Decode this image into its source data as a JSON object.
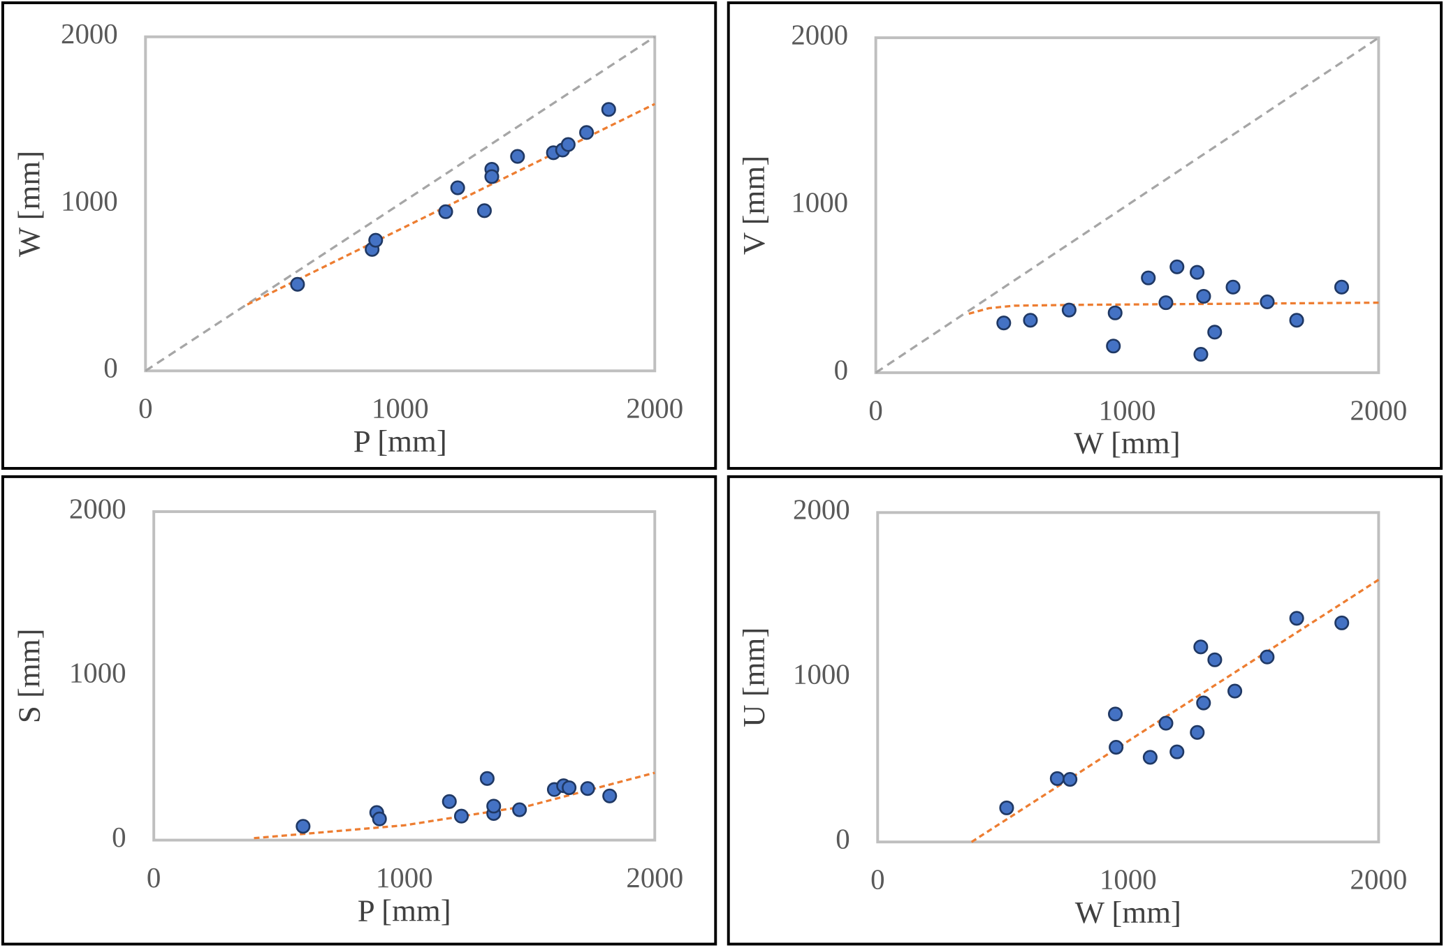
{
  "chart_data": [
    {
      "type": "scatter",
      "x_label": "P [mm]",
      "y_label": "W [mm]",
      "xlim": [
        0,
        2000
      ],
      "ylim": [
        0,
        2000
      ],
      "xticks": [
        0,
        1000,
        2000
      ],
      "yticks": [
        0,
        1000,
        2000
      ],
      "series": [
        {
          "mode": "dashed-line",
          "color": "#a6a6a6",
          "x": [
            0,
            2000
          ],
          "values": [
            0,
            2000
          ]
        },
        {
          "mode": "dashed-line",
          "color": "#ed7d31",
          "x": [
            400,
            2000
          ],
          "values": [
            397,
            1598
          ]
        },
        {
          "mode": "markers",
          "color": "#4472c4",
          "x": [
            597,
            890,
            904,
            1179,
            1226,
            1331,
            1360,
            1360,
            1461,
            1602,
            1638,
            1660,
            1732,
            1819
          ],
          "values": [
            518,
            727,
            782,
            953,
            1096,
            959,
            1207,
            1163,
            1284,
            1306,
            1322,
            1355,
            1427,
            1565
          ]
        }
      ]
    },
    {
      "type": "scatter",
      "x_label": "W [mm]",
      "y_label": "V [mm]",
      "xlim": [
        0,
        2000
      ],
      "ylim": [
        0,
        2000
      ],
      "xticks": [
        0,
        1000,
        2000
      ],
      "yticks": [
        0,
        1000,
        2000
      ],
      "series": [
        {
          "mode": "dashed-line",
          "color": "#a6a6a6",
          "x": [
            0,
            2000
          ],
          "values": [
            0,
            2000
          ]
        },
        {
          "mode": "dashed-line",
          "color": "#ed7d31",
          "x": [
            370,
            450,
            550,
            800,
            2000
          ],
          "values": [
            352,
            385,
            400,
            405,
            418
          ]
        },
        {
          "mode": "markers",
          "color": "#4472c4",
          "x": [
            509,
            615,
            769,
            952,
            945,
            1084,
            1154,
            1198,
            1278,
            1304,
            1293,
            1348,
            1421,
            1557,
            1674,
            1853
          ],
          "values": [
            297,
            313,
            374,
            357,
            159,
            566,
            418,
            632,
            599,
            456,
            110,
            242,
            511,
            423,
            313,
            511
          ]
        }
      ]
    },
    {
      "type": "scatter",
      "x_label": "P [mm]",
      "y_label": "S [mm]",
      "xlim": [
        0,
        2000
      ],
      "ylim": [
        0,
        2000
      ],
      "xticks": [
        0,
        1000,
        2000
      ],
      "yticks": [
        0,
        1000,
        2000
      ],
      "series": [
        {
          "mode": "dashed-line",
          "color": "#ed7d31",
          "x": [
            400,
            1000,
            1500,
            2000
          ],
          "values": [
            12,
            90,
            210,
            410
          ]
        },
        {
          "mode": "markers",
          "color": "#4472c4",
          "x": [
            596,
            890,
            901,
            1180,
            1228,
            1331,
            1357,
            1357,
            1460,
            1599,
            1636,
            1658,
            1732,
            1820
          ],
          "values": [
            84,
            168,
            129,
            235,
            146,
            375,
            162,
            207,
            185,
            308,
            331,
            319,
            314,
            269
          ]
        }
      ]
    },
    {
      "type": "scatter",
      "x_label": "W [mm]",
      "y_label": "U [mm]",
      "xlim": [
        0,
        2000
      ],
      "ylim": [
        0,
        2000
      ],
      "xticks": [
        0,
        1000,
        2000
      ],
      "yticks": [
        0,
        1000,
        2000
      ],
      "series": [
        {
          "mode": "dashed-line",
          "color": "#ed7d31",
          "x": [
            375,
            2000
          ],
          "values": [
            0,
            1592
          ]
        },
        {
          "mode": "markers",
          "color": "#4472c4",
          "x": [
            515,
            717,
            768,
            949,
            952,
            1088,
            1151,
            1195,
            1276,
            1290,
            1301,
            1346,
            1426,
            1555,
            1673,
            1853
          ],
          "values": [
            207,
            385,
            380,
            777,
            575,
            514,
            721,
            547,
            665,
            1184,
            844,
            1106,
            916,
            1123,
            1358,
            1330
          ]
        }
      ]
    }
  ]
}
